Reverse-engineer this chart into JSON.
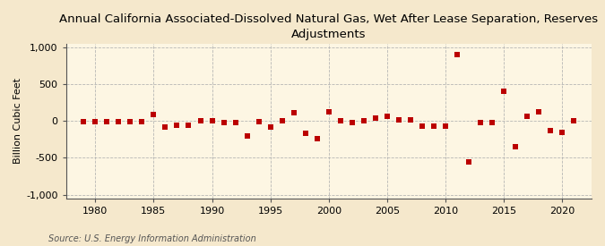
{
  "title": "Annual California Associated-Dissolved Natural Gas, Wet After Lease Separation, Reserves\nAdjustments",
  "ylabel": "Billion Cubic Feet",
  "source": "Source: U.S. Energy Information Administration",
  "background_color": "#f5e8cc",
  "plot_background_color": "#fdf6e3",
  "grid_color": "#b0b0b0",
  "marker_color": "#bb0000",
  "years": [
    1979,
    1980,
    1981,
    1982,
    1983,
    1984,
    1985,
    1986,
    1987,
    1988,
    1989,
    1990,
    1991,
    1992,
    1993,
    1994,
    1995,
    1996,
    1997,
    1998,
    1999,
    2000,
    2001,
    2002,
    2003,
    2004,
    2005,
    2006,
    2007,
    2008,
    2009,
    2010,
    2011,
    2012,
    2013,
    2014,
    2015,
    2016,
    2017,
    2018,
    2019,
    2020,
    2021
  ],
  "values": [
    -5,
    -10,
    -10,
    -10,
    -5,
    -10,
    90,
    -75,
    -60,
    -55,
    5,
    10,
    -20,
    -25,
    -200,
    -10,
    -80,
    5,
    115,
    -165,
    -240,
    130,
    10,
    -15,
    10,
    35,
    70,
    15,
    15,
    -65,
    -65,
    -65,
    900,
    -560,
    -25,
    -15,
    400,
    -345,
    70,
    120,
    -135,
    -155,
    10
  ],
  "xlim": [
    1977.5,
    2022.5
  ],
  "ylim": [
    -1050,
    1050
  ],
  "yticks": [
    -1000,
    -500,
    0,
    500,
    1000
  ],
  "xticks": [
    1980,
    1985,
    1990,
    1995,
    2000,
    2005,
    2010,
    2015,
    2020
  ],
  "title_fontsize": 9.5,
  "label_fontsize": 8,
  "tick_fontsize": 8,
  "source_fontsize": 7
}
